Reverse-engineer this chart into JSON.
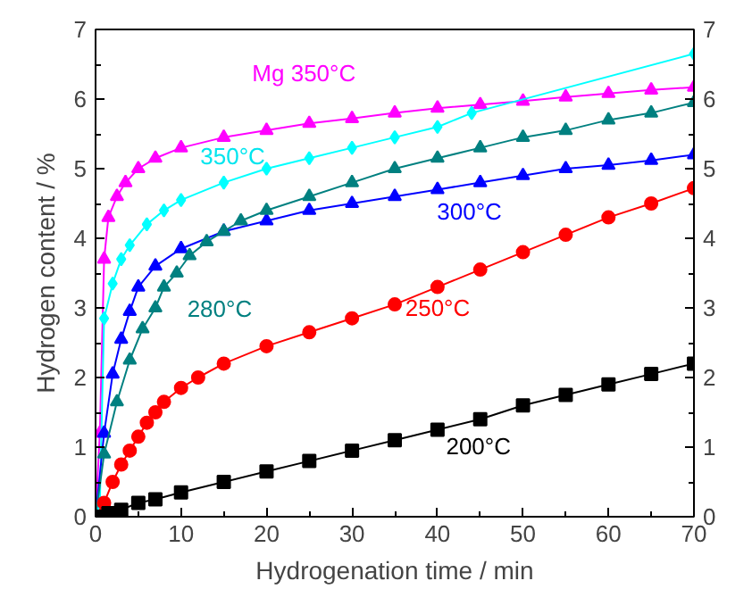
{
  "chart_data": {
    "type": "line",
    "xlabel": "Hydrogenation time / min",
    "ylabel": "Hydrogen content / %",
    "xlim": [
      0,
      70
    ],
    "xticks": [
      0,
      10,
      20,
      30,
      40,
      50,
      60,
      70
    ],
    "ylim": [
      0,
      7
    ],
    "yticks": [
      0,
      1,
      2,
      3,
      4,
      5,
      6,
      7
    ],
    "y2lim": [
      0,
      7
    ],
    "y2ticks": [
      0,
      1,
      2,
      3,
      4,
      5,
      6,
      7
    ],
    "grid": false,
    "line_style": "solid",
    "series": [
      {
        "name": "Mg 350°C",
        "color": "#ff00ff",
        "marker": "triangle",
        "x": [
          0,
          0.5,
          1,
          1.5,
          2.5,
          3.5,
          5,
          7,
          10,
          15,
          20,
          25,
          30,
          35,
          40,
          45,
          50,
          55,
          60,
          65,
          70
        ],
        "values": [
          0,
          1.2,
          3.7,
          4.3,
          4.6,
          4.8,
          5.0,
          5.15,
          5.3,
          5.45,
          5.55,
          5.65,
          5.72,
          5.8,
          5.87,
          5.92,
          5.97,
          6.03,
          6.08,
          6.13,
          6.17
        ]
      },
      {
        "name": "350°C",
        "color": "#00ffff",
        "marker": "diamond",
        "x": [
          0,
          0.5,
          1,
          2,
          3,
          4,
          6,
          8,
          10,
          15,
          20,
          25,
          30,
          35,
          40,
          44,
          70
        ],
        "values": [
          0,
          0.2,
          2.85,
          3.35,
          3.7,
          3.9,
          4.2,
          4.4,
          4.55,
          4.8,
          5.0,
          5.15,
          5.3,
          5.45,
          5.6,
          5.8,
          6.65
        ]
      },
      {
        "name": "300°C",
        "color": "#0000ff",
        "marker": "triangle",
        "x": [
          0,
          1,
          2,
          3,
          4,
          5,
          7,
          10,
          15,
          20,
          25,
          30,
          35,
          40,
          45,
          50,
          55,
          60,
          65,
          70
        ],
        "values": [
          0,
          1.2,
          2.05,
          2.55,
          2.95,
          3.3,
          3.6,
          3.85,
          4.1,
          4.25,
          4.4,
          4.5,
          4.6,
          4.7,
          4.8,
          4.9,
          5.0,
          5.05,
          5.12,
          5.2
        ]
      },
      {
        "name": "280°C",
        "color": "#008080",
        "marker": "triangle",
        "x": [
          0,
          1,
          2.5,
          4,
          5.5,
          7,
          8,
          9.5,
          11,
          13,
          15,
          17,
          20,
          25,
          30,
          35,
          40,
          45,
          50,
          55,
          60,
          65,
          70
        ],
        "values": [
          0,
          0.9,
          1.65,
          2.25,
          2.7,
          3.0,
          3.3,
          3.5,
          3.75,
          3.95,
          4.1,
          4.25,
          4.4,
          4.6,
          4.8,
          5.0,
          5.15,
          5.3,
          5.45,
          5.55,
          5.7,
          5.8,
          5.95
        ]
      },
      {
        "name": "250°C",
        "color": "#ff0000",
        "marker": "circle",
        "x": [
          0,
          1,
          2,
          3,
          4,
          5,
          6,
          7,
          8,
          10,
          12,
          15,
          20,
          25,
          30,
          35,
          40,
          45,
          50,
          55,
          60,
          65,
          70
        ],
        "values": [
          0,
          0.2,
          0.5,
          0.75,
          0.95,
          1.15,
          1.35,
          1.5,
          1.65,
          1.85,
          2.0,
          2.2,
          2.45,
          2.65,
          2.85,
          3.05,
          3.3,
          3.55,
          3.8,
          4.05,
          4.3,
          4.5,
          4.72
        ]
      },
      {
        "name": "200°C",
        "color": "#000000",
        "marker": "square",
        "x": [
          0,
          1.5,
          3,
          5,
          7,
          10,
          15,
          20,
          25,
          30,
          35,
          40,
          45,
          50,
          55,
          60,
          65,
          70
        ],
        "values": [
          0,
          0.05,
          0.1,
          0.2,
          0.25,
          0.35,
          0.5,
          0.65,
          0.8,
          0.95,
          1.1,
          1.25,
          1.4,
          1.6,
          1.75,
          1.9,
          2.05,
          2.2
        ]
      }
    ]
  }
}
